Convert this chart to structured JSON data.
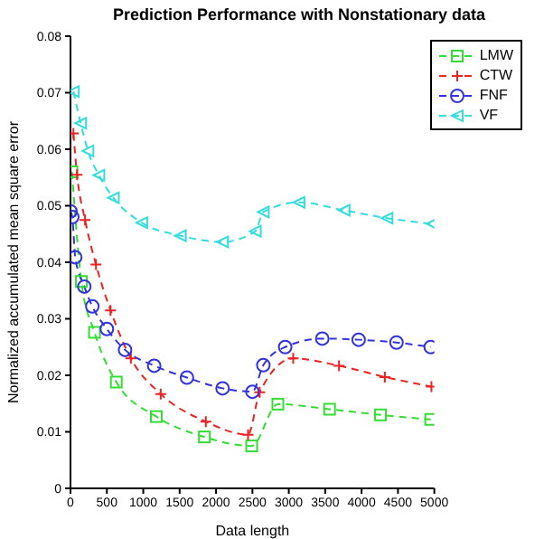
{
  "chart_data": {
    "type": "line",
    "title": "Prediction Performance with Nonstationary data",
    "xlabel": "Data length",
    "ylabel": "Normalized accumulated mean square error",
    "xlim": [
      0,
      5000
    ],
    "xticks": [
      0,
      500,
      1000,
      1500,
      2000,
      2500,
      3000,
      3500,
      4000,
      4500,
      5000
    ],
    "ylim": [
      0,
      0.08
    ],
    "yticks": [
      0,
      0.01,
      0.02,
      0.03,
      0.04,
      0.05,
      0.06,
      0.07,
      0.08
    ],
    "grid": false,
    "legend": "top right",
    "line_style": "dashed",
    "series": [
      {
        "name": "LMW",
        "color": "#33dd33",
        "marker": "square",
        "x": [
          20,
          150,
          330,
          630,
          1180,
          1840,
          2490,
          2850,
          3560,
          4260,
          4950
        ],
        "values": [
          0.056,
          0.0366,
          0.0276,
          0.0188,
          0.0127,
          0.0091,
          0.0075,
          0.0149,
          0.014,
          0.013,
          0.0122
        ]
      },
      {
        "name": "CTW",
        "color": "#ee2222",
        "marker": "cross",
        "x": [
          40,
          90,
          200,
          350,
          550,
          830,
          1240,
          1860,
          2440,
          2600,
          3060,
          3690,
          4320,
          4960
        ],
        "values": [
          0.0628,
          0.0555,
          0.0475,
          0.0396,
          0.0315,
          0.023,
          0.0167,
          0.0118,
          0.0095,
          0.017,
          0.023,
          0.0217,
          0.0197,
          0.018
        ]
      },
      {
        "name": "FNF",
        "color": "#3333dd",
        "marker": "circle",
        "x": [
          0,
          25,
          65,
          190,
          300,
          500,
          750,
          1150,
          1600,
          2090,
          2500,
          2650,
          2950,
          3460,
          3960,
          4480,
          4950
        ],
        "values": [
          0.049,
          0.048,
          0.0409,
          0.0357,
          0.0322,
          0.0282,
          0.0245,
          0.0217,
          0.0196,
          0.0177,
          0.0171,
          0.0218,
          0.025,
          0.0265,
          0.0263,
          0.0258,
          0.025
        ]
      },
      {
        "name": "VF",
        "color": "#33dddd",
        "marker": "triangle",
        "x": [
          40,
          140,
          240,
          390,
          590,
          980,
          1510,
          2090,
          2540,
          2650,
          3140,
          3760,
          4350,
          4970
        ],
        "values": [
          0.0702,
          0.0646,
          0.0597,
          0.0554,
          0.0514,
          0.047,
          0.0447,
          0.0436,
          0.0455,
          0.0489,
          0.0506,
          0.0492,
          0.0478,
          0.0468
        ]
      }
    ]
  }
}
